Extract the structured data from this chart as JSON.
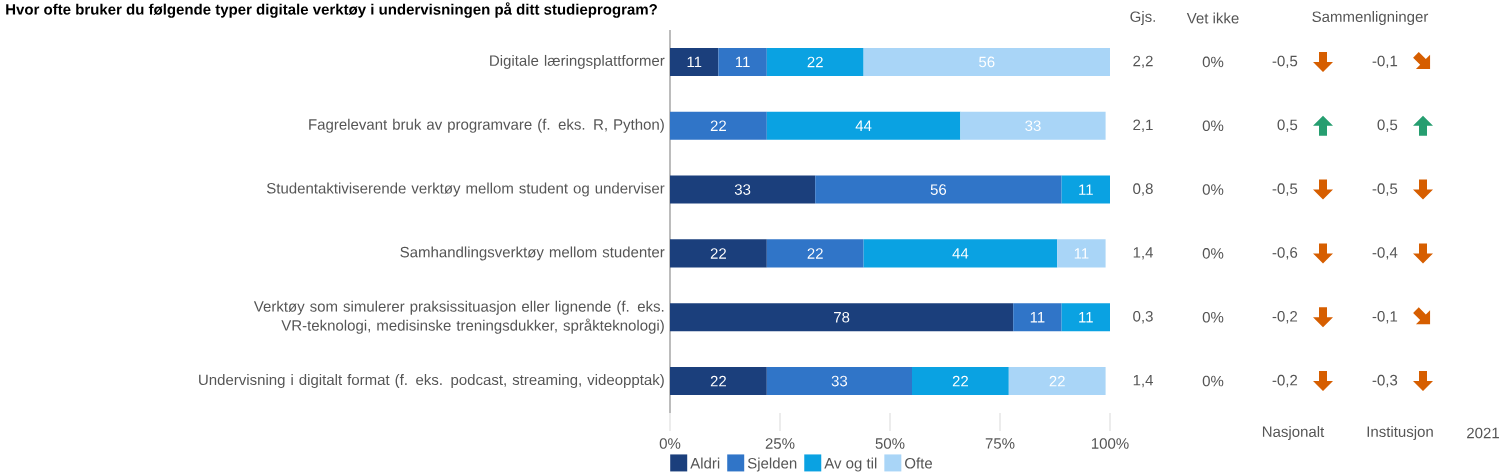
{
  "chart_data": {
    "type": "bar",
    "orientation": "horizontal",
    "stacked": true,
    "title": "Hvor ofte bruker du følgende typer digitale verktøy i undervisningen på ditt studieprogram?",
    "categories": [
      "Digitale læringsplattformer",
      "Fagrelevant bruk av programvare (f. eks. R, Python)",
      "Studentaktiviserende verktøy mellom student og underviser",
      "Samhandlingsverktøy mellom studenter",
      "Verktøy som simulerer praksissituasjon eller lignende (f. eks. VR-teknologi, medisinske treningsdukker, språkteknologi)",
      "Undervisning i digitalt format (f. eks. podcast, streaming, videopptak)"
    ],
    "series": [
      {
        "name": "Aldri",
        "color": "#1b3f7c",
        "values": [
          11,
          null,
          33,
          22,
          78,
          22
        ]
      },
      {
        "name": "Sjelden",
        "color": "#3075c8",
        "values": [
          11,
          22,
          56,
          22,
          11,
          33
        ]
      },
      {
        "name": "Av og til",
        "color": "#0aa2e2",
        "values": [
          22,
          44,
          11,
          44,
          11,
          22
        ]
      },
      {
        "name": "Ofte",
        "color": "#a9d5f7",
        "values": [
          56,
          33,
          null,
          11,
          null,
          22
        ]
      }
    ],
    "xlim": [
      0,
      100
    ],
    "xticks": [
      {
        "value": 0,
        "label": "0%"
      },
      {
        "value": 25,
        "label": "25%"
      },
      {
        "value": 50,
        "label": "50%"
      },
      {
        "value": 75,
        "label": "75%"
      },
      {
        "value": 100,
        "label": "100%"
      }
    ],
    "data_labels": true,
    "legend": "bottom",
    "annotations": [
      "Gjs.",
      "Vet ikke",
      "Sammenligninger",
      "Nasjonalt",
      "Institusjon",
      "2021",
      "2,2",
      "0%",
      "-0,5",
      "-0,1",
      "2,1",
      "0%",
      "0,5",
      "0,5",
      "0,8",
      "0%",
      "-0,5",
      "-0,5",
      "1,4",
      "0%",
      "-0,6",
      "-0,4",
      "0,3",
      "0%",
      "-0,2",
      "-0,1",
      "1,4",
      "0%",
      "-0,2",
      "-0,3"
    ]
  }
}
